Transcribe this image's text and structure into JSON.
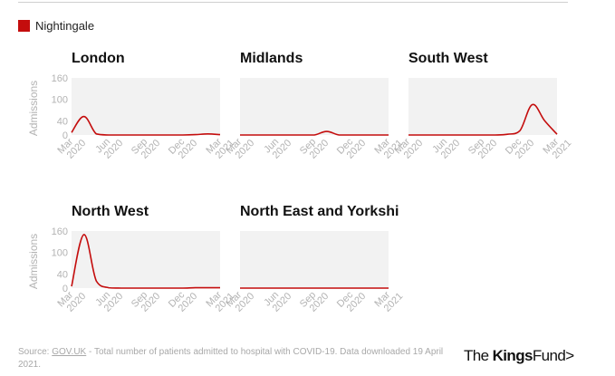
{
  "legend": {
    "label": "Nightingale",
    "color": "#c40d0d"
  },
  "chart_data": [
    {
      "type": "area",
      "title": "London",
      "ylabel": "Admissions",
      "x": [
        "Mar 2020",
        "Apr 2020",
        "May 2020",
        "Jun 2020",
        "Jul 2020",
        "Aug 2020",
        "Sep 2020",
        "Oct 2020",
        "Nov 2020",
        "Dec 2020",
        "Jan 2021",
        "Feb 2021",
        "Mar 2021"
      ],
      "xticks": [
        "Mar 2020",
        "Jun 2020",
        "Sep 2020",
        "Dec 2020",
        "Mar 2021"
      ],
      "yticks": [
        0,
        40,
        100,
        160
      ],
      "ylim": [
        0,
        160
      ],
      "series": [
        {
          "name": "Nightingale",
          "values": [
            7,
            52,
            3,
            0,
            0,
            0,
            0,
            0,
            0,
            0,
            1,
            3,
            1
          ]
        }
      ]
    },
    {
      "type": "area",
      "title": "Midlands",
      "ylabel": "Admissions",
      "x": [
        "Mar 2020",
        "Apr 2020",
        "May 2020",
        "Jun 2020",
        "Jul 2020",
        "Aug 2020",
        "Sep 2020",
        "Oct 2020",
        "Nov 2020",
        "Dec 2020",
        "Jan 2021",
        "Feb 2021",
        "Mar 2021"
      ],
      "xticks": [
        "Mar 2020",
        "Jun 2020",
        "Sep 2020",
        "Dec 2020",
        "Mar 2021"
      ],
      "yticks": [
        0,
        40,
        100,
        160
      ],
      "ylim": [
        0,
        160
      ],
      "series": [
        {
          "name": "Nightingale",
          "values": [
            0,
            0,
            0,
            0,
            0,
            0,
            0,
            10,
            0,
            0,
            0,
            0,
            0
          ]
        }
      ]
    },
    {
      "type": "area",
      "title": "South West",
      "ylabel": "Admissions",
      "x": [
        "Mar 2020",
        "Apr 2020",
        "May 2020",
        "Jun 2020",
        "Jul 2020",
        "Aug 2020",
        "Sep 2020",
        "Oct 2020",
        "Nov 2020",
        "Dec 2020",
        "Jan 2021",
        "Feb 2021",
        "Mar 2021"
      ],
      "xticks": [
        "Mar 2020",
        "Jun 2020",
        "Sep 2020",
        "Dec 2020",
        "Mar 2021"
      ],
      "yticks": [
        0,
        40,
        100,
        160
      ],
      "ylim": [
        0,
        160
      ],
      "series": [
        {
          "name": "Nightingale",
          "values": [
            0,
            0,
            0,
            0,
            0,
            0,
            0,
            0,
            2,
            12,
            85,
            40,
            2
          ]
        }
      ]
    },
    {
      "type": "area",
      "title": "North West",
      "ylabel": "Admissions",
      "x": [
        "Mar 2020",
        "Apr 2020",
        "May 2020",
        "Jun 2020",
        "Jul 2020",
        "Aug 2020",
        "Sep 2020",
        "Oct 2020",
        "Nov 2020",
        "Dec 2020",
        "Jan 2021",
        "Feb 2021",
        "Mar 2021"
      ],
      "xticks": [
        "Mar 2020",
        "Jun 2020",
        "Sep 2020",
        "Dec 2020",
        "Mar 2021"
      ],
      "yticks": [
        0,
        40,
        100,
        160
      ],
      "ylim": [
        0,
        160
      ],
      "series": [
        {
          "name": "Nightingale",
          "values": [
            5,
            150,
            20,
            1,
            0,
            0,
            0,
            0,
            0,
            0,
            1,
            1,
            1
          ]
        }
      ]
    },
    {
      "type": "area",
      "title": "North East and Yorkshi",
      "ylabel": "Admissions",
      "x": [
        "Mar 2020",
        "Apr 2020",
        "May 2020",
        "Jun 2020",
        "Jul 2020",
        "Aug 2020",
        "Sep 2020",
        "Oct 2020",
        "Nov 2020",
        "Dec 2020",
        "Jan 2021",
        "Feb 2021",
        "Mar 2021"
      ],
      "xticks": [
        "Mar 2020",
        "Jun 2020",
        "Sep 2020",
        "Dec 2020",
        "Mar 2021"
      ],
      "yticks": [
        0,
        40,
        100,
        160
      ],
      "ylim": [
        0,
        160
      ],
      "series": [
        {
          "name": "Nightingale",
          "values": [
            0,
            0,
            0,
            0,
            0,
            0,
            0,
            0,
            0,
            0,
            0,
            0,
            0
          ]
        }
      ]
    }
  ],
  "footer": {
    "source_prefix": "Source: ",
    "source_link": "GOV.UK",
    "source_rest": " - Total number of patients admitted to hospital with COVID-19. Data downloaded 19 April 2021."
  },
  "brand": {
    "part1": "The ",
    "part2": "Kings",
    "part3": "Fund",
    "mark": ">"
  }
}
